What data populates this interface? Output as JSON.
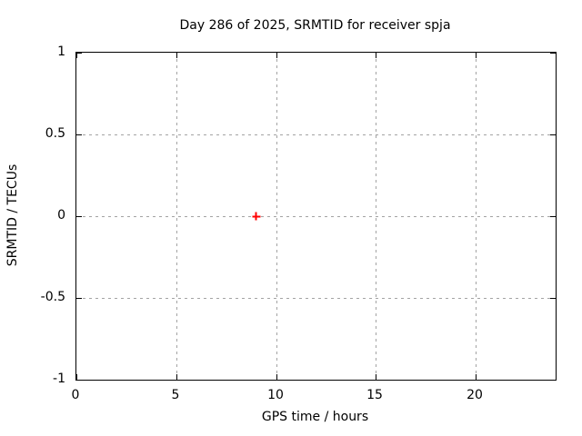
{
  "chart_data": {
    "type": "scatter",
    "title": "Day 286 of 2025, SRMTID for receiver spja",
    "xlabel": "GPS time / hours",
    "ylabel": "SRMTID / TECUs",
    "xlim": [
      0,
      24
    ],
    "ylim": [
      -1,
      1
    ],
    "xticks": [
      {
        "value": 0,
        "label": "0"
      },
      {
        "value": 5,
        "label": "5"
      },
      {
        "value": 10,
        "label": "10"
      },
      {
        "value": 15,
        "label": "15"
      },
      {
        "value": 20,
        "label": "20"
      }
    ],
    "yticks": [
      {
        "value": 1,
        "label": "1"
      },
      {
        "value": 0.5,
        "label": "0.5"
      },
      {
        "value": 0,
        "label": "0"
      },
      {
        "value": -0.5,
        "label": "-0.5"
      },
      {
        "value": -1,
        "label": "-1"
      }
    ],
    "grid": true,
    "legend": "none",
    "series": [
      {
        "name": "SRMTID",
        "marker": "plus",
        "color": "#ff0000",
        "points": [
          {
            "x": 9.0,
            "y": 0.0
          }
        ]
      }
    ]
  },
  "colors": {
    "marker": "#ff0000",
    "grid": "#a3a3a3",
    "axis": "#000000",
    "background": "#ffffff",
    "text": "#000000"
  }
}
